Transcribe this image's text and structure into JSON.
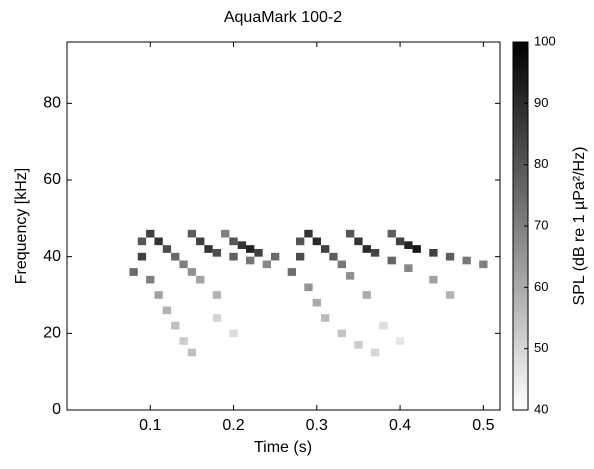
{
  "chart_data": {
    "type": "spectrogram",
    "title": "AquaMark 100-2",
    "x_label": "Time (s)",
    "y_label": "Frequency [kHz]",
    "colorbar_label": "SPL (dB re 1 µPa²/Hz)",
    "xlim": [
      0,
      0.52
    ],
    "xticks": [
      0.1,
      0.2,
      0.3,
      0.4,
      0.5
    ],
    "ylim": [
      0,
      96
    ],
    "yticks": [
      0,
      20,
      40,
      60,
      80
    ],
    "clim": [
      40,
      100
    ],
    "cticks": [
      40,
      50,
      60,
      70,
      80,
      90,
      100
    ],
    "colormap": "gray",
    "x": [
      0.09,
      0.09,
      0.08,
      0.1,
      0.11,
      0.12,
      0.13,
      0.14,
      0.15,
      0.1,
      0.11,
      0.12,
      0.13,
      0.14,
      0.15,
      0.16,
      0.18,
      0.15,
      0.16,
      0.17,
      0.18,
      0.2,
      0.22,
      0.24,
      0.19,
      0.2,
      0.21,
      0.22,
      0.23,
      0.25,
      0.28,
      0.28,
      0.27,
      0.29,
      0.3,
      0.31,
      0.33,
      0.35,
      0.37,
      0.29,
      0.3,
      0.31,
      0.32,
      0.33,
      0.34,
      0.36,
      0.34,
      0.35,
      0.36,
      0.37,
      0.39,
      0.41,
      0.44,
      0.46,
      0.39,
      0.4,
      0.41,
      0.42,
      0.44,
      0.46,
      0.48,
      0.5,
      0.18,
      0.2,
      0.38,
      0.4
    ],
    "y": [
      44,
      40,
      36,
      34,
      30,
      26,
      22,
      18,
      15,
      46,
      44,
      42,
      40,
      38,
      36,
      34,
      30,
      46,
      44,
      42,
      41,
      40,
      39,
      38,
      46,
      44,
      43,
      42,
      41,
      40,
      44,
      40,
      36,
      32,
      28,
      24,
      20,
      17,
      15,
      46,
      44,
      42,
      40,
      38,
      35,
      30,
      46,
      44,
      42,
      41,
      39,
      37,
      34,
      30,
      46,
      44,
      43,
      42,
      41,
      40,
      39,
      38,
      24,
      20,
      22,
      18
    ],
    "values": [
      80,
      85,
      75,
      70,
      62,
      58,
      55,
      52,
      55,
      85,
      88,
      82,
      75,
      70,
      66,
      62,
      58,
      78,
      85,
      88,
      82,
      78,
      72,
      68,
      70,
      80,
      88,
      92,
      85,
      75,
      80,
      82,
      75,
      65,
      60,
      56,
      54,
      52,
      50,
      88,
      90,
      85,
      78,
      72,
      66,
      60,
      80,
      88,
      90,
      84,
      76,
      68,
      62,
      58,
      78,
      85,
      92,
      95,
      85,
      78,
      72,
      70,
      50,
      48,
      48,
      46
    ]
  }
}
